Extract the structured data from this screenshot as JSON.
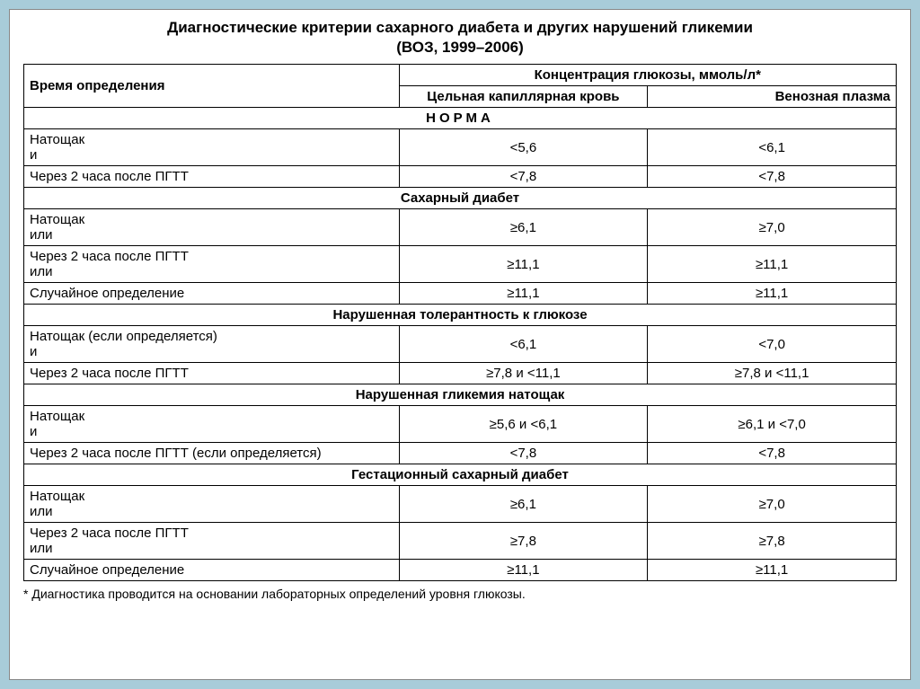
{
  "title": "Диагностические критерии сахарного диабета и других нарушений гликемии",
  "subtitle": "(ВОЗ, 1999–2006)",
  "columns": {
    "time": "Время определения",
    "conc_header": "Концентрация глюкозы, ммоль/л*",
    "capillary": "Цельная капиллярная кровь",
    "venous": "Венозная плазма"
  },
  "sections": {
    "norma": "НОРМА",
    "diabetes": "Сахарный диабет",
    "igt": "Нарушенная толерантность к глюкозе",
    "ifg": "Нарушенная гликемия натощак",
    "gdm": "Гестационный сахарный диабет"
  },
  "labels": {
    "fasting": "Натощак",
    "and": "и",
    "or": "или",
    "after2h": "Через 2 часа после ПГТТ",
    "fasting_if": "Натощак (если определяется)",
    "after2h_if": "Через 2 часа после ПГТТ (если определяется)",
    "random": "Случайное определение"
  },
  "data": {
    "norma": {
      "fasting_cap": "<5,6",
      "fasting_ven": "<6,1",
      "after2h_cap": "<7,8",
      "after2h_ven": "<7,8"
    },
    "diabetes": {
      "fasting_cap": "≥6,1",
      "fasting_ven": "≥7,0",
      "after2h_cap": "≥11,1",
      "after2h_ven": "≥11,1",
      "random_cap": "≥11,1",
      "random_ven": "≥11,1"
    },
    "igt": {
      "fasting_cap": "<6,1",
      "fasting_ven": "<7,0",
      "after2h_cap": "≥7,8 и <11,1",
      "after2h_ven": "≥7,8 и <11,1"
    },
    "ifg": {
      "fasting_cap": "≥5,6 и <6,1",
      "fasting_ven": "≥6,1 и <7,0",
      "after2h_cap": "<7,8",
      "after2h_ven": "<7,8"
    },
    "gdm": {
      "fasting_cap": "≥6,1",
      "fasting_ven": "≥7,0",
      "after2h_cap": "≥7,8",
      "after2h_ven": "≥7,8",
      "random_cap": "≥11,1",
      "random_ven": "≥11,1"
    }
  },
  "footnote": "* Диагностика проводится на основании лабораторных определений уровня глюкозы.",
  "styles": {
    "background_page": "#a8ccd9",
    "background_table": "#ffffff",
    "border_color": "#000000",
    "title_fontsize": 17,
    "cell_fontsize": 15,
    "footnote_fontsize": 14,
    "col_widths_pct": [
      43,
      28.5,
      28.5
    ]
  }
}
